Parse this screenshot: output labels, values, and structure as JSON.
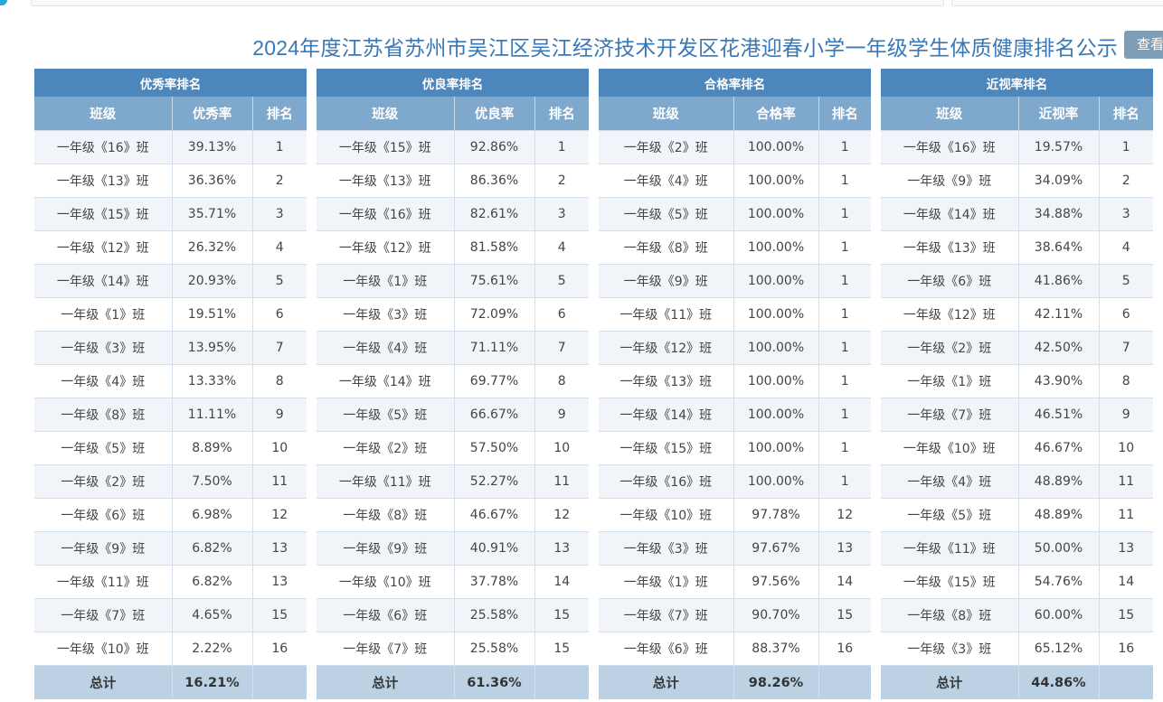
{
  "title": "2024年度江苏省苏州市吴江区吴江经济技术开发区花港迎春小学一年级学生体质健康排名公示",
  "view_button": "查看",
  "tables": [
    {
      "caption": "优秀率排名",
      "headers": [
        "班级",
        "优秀率",
        "排名"
      ],
      "rows": [
        [
          "一年级《16》班",
          "39.13%",
          "1"
        ],
        [
          "一年级《13》班",
          "36.36%",
          "2"
        ],
        [
          "一年级《15》班",
          "35.71%",
          "3"
        ],
        [
          "一年级《12》班",
          "26.32%",
          "4"
        ],
        [
          "一年级《14》班",
          "20.93%",
          "5"
        ],
        [
          "一年级《1》班",
          "19.51%",
          "6"
        ],
        [
          "一年级《3》班",
          "13.95%",
          "7"
        ],
        [
          "一年级《4》班",
          "13.33%",
          "8"
        ],
        [
          "一年级《8》班",
          "11.11%",
          "9"
        ],
        [
          "一年级《5》班",
          "8.89%",
          "10"
        ],
        [
          "一年级《2》班",
          "7.50%",
          "11"
        ],
        [
          "一年级《6》班",
          "6.98%",
          "12"
        ],
        [
          "一年级《9》班",
          "6.82%",
          "13"
        ],
        [
          "一年级《11》班",
          "6.82%",
          "13"
        ],
        [
          "一年级《7》班",
          "4.65%",
          "15"
        ],
        [
          "一年级《10》班",
          "2.22%",
          "16"
        ]
      ],
      "total": [
        "总计",
        "16.21%",
        ""
      ]
    },
    {
      "caption": "优良率排名",
      "headers": [
        "班级",
        "优良率",
        "排名"
      ],
      "rows": [
        [
          "一年级《15》班",
          "92.86%",
          "1"
        ],
        [
          "一年级《13》班",
          "86.36%",
          "2"
        ],
        [
          "一年级《16》班",
          "82.61%",
          "3"
        ],
        [
          "一年级《12》班",
          "81.58%",
          "4"
        ],
        [
          "一年级《1》班",
          "75.61%",
          "5"
        ],
        [
          "一年级《3》班",
          "72.09%",
          "6"
        ],
        [
          "一年级《4》班",
          "71.11%",
          "7"
        ],
        [
          "一年级《14》班",
          "69.77%",
          "8"
        ],
        [
          "一年级《5》班",
          "66.67%",
          "9"
        ],
        [
          "一年级《2》班",
          "57.50%",
          "10"
        ],
        [
          "一年级《11》班",
          "52.27%",
          "11"
        ],
        [
          "一年级《8》班",
          "46.67%",
          "12"
        ],
        [
          "一年级《9》班",
          "40.91%",
          "13"
        ],
        [
          "一年级《10》班",
          "37.78%",
          "14"
        ],
        [
          "一年级《6》班",
          "25.58%",
          "15"
        ],
        [
          "一年级《7》班",
          "25.58%",
          "15"
        ]
      ],
      "total": [
        "总计",
        "61.36%",
        ""
      ]
    },
    {
      "caption": "合格率排名",
      "headers": [
        "班级",
        "合格率",
        "排名"
      ],
      "rows": [
        [
          "一年级《2》班",
          "100.00%",
          "1"
        ],
        [
          "一年级《4》班",
          "100.00%",
          "1"
        ],
        [
          "一年级《5》班",
          "100.00%",
          "1"
        ],
        [
          "一年级《8》班",
          "100.00%",
          "1"
        ],
        [
          "一年级《9》班",
          "100.00%",
          "1"
        ],
        [
          "一年级《11》班",
          "100.00%",
          "1"
        ],
        [
          "一年级《12》班",
          "100.00%",
          "1"
        ],
        [
          "一年级《13》班",
          "100.00%",
          "1"
        ],
        [
          "一年级《14》班",
          "100.00%",
          "1"
        ],
        [
          "一年级《15》班",
          "100.00%",
          "1"
        ],
        [
          "一年级《16》班",
          "100.00%",
          "1"
        ],
        [
          "一年级《10》班",
          "97.78%",
          "12"
        ],
        [
          "一年级《3》班",
          "97.67%",
          "13"
        ],
        [
          "一年级《1》班",
          "97.56%",
          "14"
        ],
        [
          "一年级《7》班",
          "90.70%",
          "15"
        ],
        [
          "一年级《6》班",
          "88.37%",
          "16"
        ]
      ],
      "total": [
        "总计",
        "98.26%",
        ""
      ]
    },
    {
      "caption": "近视率排名",
      "headers": [
        "班级",
        "近视率",
        "排名"
      ],
      "rows": [
        [
          "一年级《16》班",
          "19.57%",
          "1"
        ],
        [
          "一年级《9》班",
          "34.09%",
          "2"
        ],
        [
          "一年级《14》班",
          "34.88%",
          "3"
        ],
        [
          "一年级《13》班",
          "38.64%",
          "4"
        ],
        [
          "一年级《6》班",
          "41.86%",
          "5"
        ],
        [
          "一年级《12》班",
          "42.11%",
          "6"
        ],
        [
          "一年级《2》班",
          "42.50%",
          "7"
        ],
        [
          "一年级《1》班",
          "43.90%",
          "8"
        ],
        [
          "一年级《7》班",
          "46.51%",
          "9"
        ],
        [
          "一年级《10》班",
          "46.67%",
          "10"
        ],
        [
          "一年级《4》班",
          "48.89%",
          "11"
        ],
        [
          "一年级《5》班",
          "48.89%",
          "11"
        ],
        [
          "一年级《11》班",
          "50.00%",
          "13"
        ],
        [
          "一年级《15》班",
          "54.76%",
          "14"
        ],
        [
          "一年级《8》班",
          "60.00%",
          "15"
        ],
        [
          "一年级《3》班",
          "65.12%",
          "16"
        ]
      ],
      "total": [
        "总计",
        "44.86%",
        ""
      ]
    }
  ]
}
